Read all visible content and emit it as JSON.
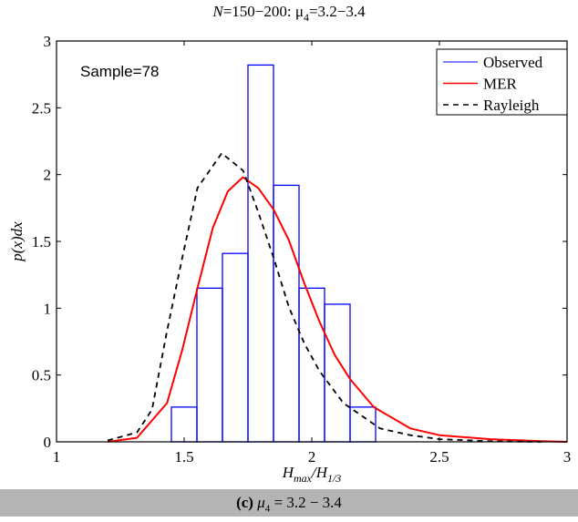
{
  "chart_data": {
    "type": "histogram+line",
    "title_prefix": "N",
    "title_rest": "=150−200: μ",
    "title_sub": "4",
    "title_end": "=3.2−3.4",
    "xlabel_main": "H",
    "xlabel_sub1": "max",
    "xlabel_sep": "/H",
    "xlabel_sub2": "1/3",
    "ylabel": "p(x)dx",
    "xlim": [
      1,
      3
    ],
    "ylim": [
      0,
      3
    ],
    "xticks": [
      1,
      1.5,
      2,
      2.5,
      3
    ],
    "yticks": [
      0,
      0.5,
      1,
      1.5,
      2,
      2.5,
      3
    ],
    "annotation": "Sample=78",
    "legend_position": "top-right",
    "series": [
      {
        "name": "Observed",
        "kind": "histogram",
        "color": "#0000ff",
        "bin_edges": [
          1.45,
          1.55,
          1.65,
          1.75,
          1.85,
          1.95,
          2.05,
          2.15,
          2.25
        ],
        "values": [
          0.26,
          1.15,
          1.41,
          2.82,
          1.92,
          1.15,
          1.03,
          0.26
        ]
      },
      {
        "name": "MER",
        "kind": "line",
        "color": "#ff0000",
        "x": [
          1.2,
          1.315,
          1.433,
          1.493,
          1.552,
          1.612,
          1.671,
          1.73,
          1.79,
          1.85,
          1.91,
          1.97,
          2.03,
          2.09,
          2.15,
          2.243,
          2.386,
          2.5,
          2.7,
          2.9,
          3.0
        ],
        "y": [
          0.0,
          0.03,
          0.29,
          0.69,
          1.15,
          1.6,
          1.875,
          1.98,
          1.9,
          1.74,
          1.51,
          1.19,
          0.9,
          0.65,
          0.47,
          0.26,
          0.1,
          0.05,
          0.02,
          0.005,
          0.0
        ]
      },
      {
        "name": "Rayleigh",
        "kind": "line",
        "dash": "dashed",
        "color": "#000000",
        "x": [
          1.2,
          1.315,
          1.374,
          1.433,
          1.493,
          1.552,
          1.647,
          1.731,
          1.79,
          1.85,
          1.91,
          1.97,
          2.03,
          2.124,
          2.267,
          2.386,
          2.5,
          2.7,
          2.9
        ],
        "y": [
          0.01,
          0.07,
          0.24,
          0.83,
          1.38,
          1.9,
          2.16,
          2.03,
          1.72,
          1.38,
          1.01,
          0.74,
          0.53,
          0.29,
          0.1,
          0.05,
          0.02,
          0.005,
          0.0
        ]
      }
    ]
  },
  "caption": {
    "label": "(c) ",
    "mu": "μ",
    "sub": "4",
    "rest": " = 3.2 − 3.4"
  }
}
